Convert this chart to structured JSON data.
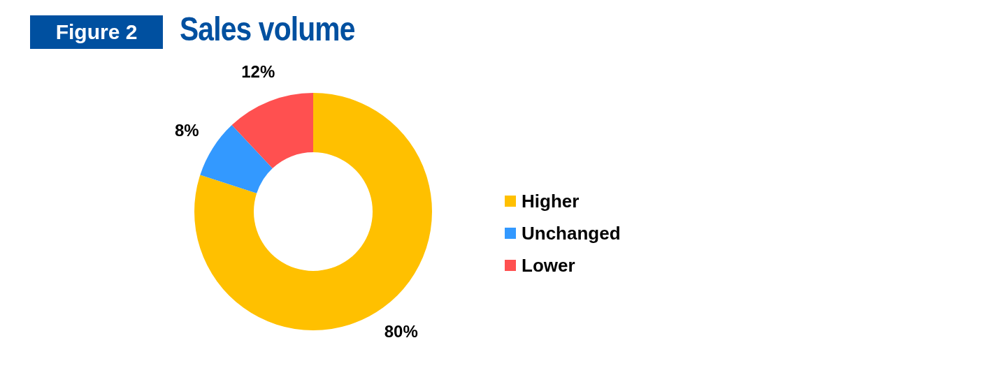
{
  "chart_data": {
    "type": "donut",
    "title": "Sales volume",
    "annotations": [
      "Figure 2"
    ],
    "categories": [
      "Higher",
      "Unchanged",
      "Lower"
    ],
    "values": [
      80,
      8,
      12
    ],
    "colors": [
      "#ffc000",
      "#3399ff",
      "#ff5050"
    ],
    "value_labels": [
      "80%",
      "8%",
      "12%"
    ],
    "legend": "right"
  }
}
